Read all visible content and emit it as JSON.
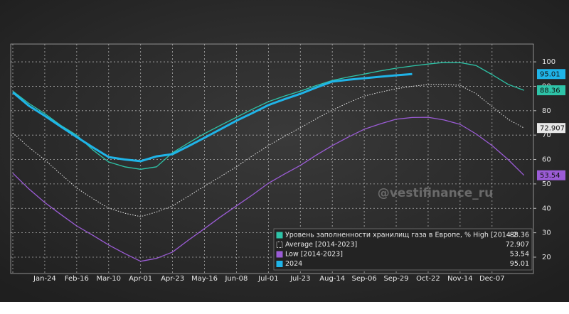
{
  "chart_data": {
    "type": "line",
    "watermark": "@vestifinance_ru",
    "categories": [
      null,
      null,
      "Jan-24",
      null,
      "Feb-16",
      null,
      "Mar-10",
      null,
      "Apr-01",
      null,
      "Apr-23",
      null,
      "May-16",
      null,
      "Jun-08",
      null,
      "Jul-01",
      null,
      "Jul-23",
      null,
      "Aug-14",
      null,
      "Sep-06",
      null,
      "Sep-29",
      null,
      "Oct-22",
      null,
      "Nov-14",
      null,
      "Dec-07",
      null,
      null
    ],
    "series": [
      {
        "name": "Уровень заполненности хранилищ газа в Европе, % High [2014-2",
        "color": "#2ec4a8",
        "width": 1.3,
        "values": [
          88,
          83,
          78.8,
          74,
          70,
          64,
          59,
          57,
          56,
          57,
          62.8,
          66.8,
          70.6,
          74,
          77.3,
          80.6,
          83.7,
          86,
          88,
          90.3,
          92.4,
          93.8,
          95,
          96.3,
          97.4,
          98.3,
          99.1,
          99.8,
          99.7,
          98.5,
          94.8,
          90.8,
          88.36
        ]
      },
      {
        "name": "Average  [2014-2023]",
        "color": "#e8e8e8",
        "width": 1,
        "dashed": true,
        "values": [
          70.9,
          65,
          59.9,
          54,
          48.3,
          44,
          40.1,
          38,
          36.6,
          38.5,
          41,
          45,
          49.1,
          53,
          57,
          61.5,
          65.7,
          69.5,
          73,
          76.7,
          80.2,
          83.3,
          86,
          87.6,
          89,
          90,
          90.7,
          90.8,
          90.4,
          87,
          81.7,
          76.5,
          72.907
        ]
      },
      {
        "name": "Low  [2014-2023]",
        "color": "#9b5cd6",
        "width": 1.3,
        "values": [
          54.4,
          48,
          42.4,
          37.5,
          32.8,
          29,
          25,
          21.5,
          18.3,
          19.5,
          22.1,
          27,
          31.7,
          36.5,
          41,
          45.5,
          50.3,
          54,
          57.6,
          61.8,
          65.7,
          69.2,
          72.4,
          74.6,
          76.5,
          77.2,
          77.3,
          76.2,
          74.4,
          70.5,
          65.7,
          60,
          53.54
        ]
      },
      {
        "name": "2024",
        "color": "#1fb4e8",
        "width": 3,
        "values": [
          87.5,
          82,
          77.9,
          73.5,
          69.2,
          65,
          61,
          60,
          59.3,
          61.3,
          62.2,
          65.5,
          68.9,
          72.4,
          75.9,
          79,
          82.3,
          84.7,
          86.9,
          89.5,
          91.9,
          92.7,
          93.3,
          93.9,
          94.5,
          95.01,
          null,
          null,
          null,
          null,
          null,
          null,
          null
        ]
      }
    ],
    "ylim": [
      13.3,
      107.3
    ],
    "yticks": [
      20,
      30,
      40,
      50,
      60,
      70,
      80,
      90,
      100
    ],
    "grid": true
  }
}
